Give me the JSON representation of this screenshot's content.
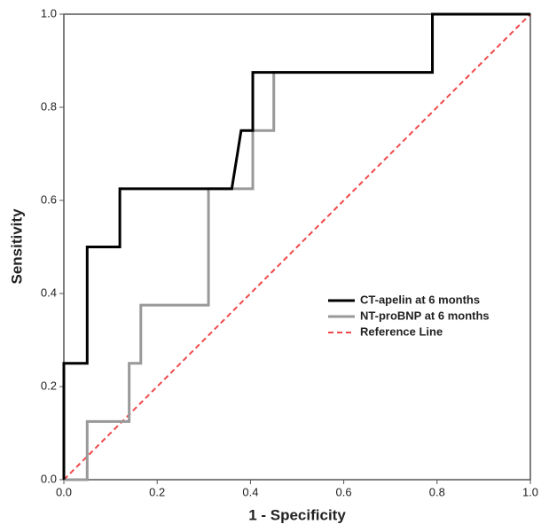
{
  "chart_data": {
    "type": "line",
    "xlabel": "1 - Specificity",
    "ylabel": "Sensitivity",
    "xlim": [
      0,
      1
    ],
    "ylim": [
      0,
      1
    ],
    "xticks": [
      {
        "value": 0,
        "label": "0.0"
      },
      0.2,
      0.4,
      0.6,
      0.8,
      {
        "value": 1,
        "label": "1.0"
      }
    ],
    "yticks": [
      {
        "value": 0,
        "label": "0.0"
      },
      0.2,
      0.4,
      0.6,
      0.8,
      {
        "value": 1,
        "label": "1.0"
      }
    ],
    "legend": "center-right",
    "series": [
      {
        "name": "CT-apelin at 6 months",
        "color": "#000000",
        "dash": false,
        "x": [
          0,
          0,
          0.05,
          0.05,
          0.12,
          0.12,
          0.36,
          0.38,
          0.405,
          0.405,
          0.79,
          0.79,
          1
        ],
        "values": [
          0,
          0.25,
          0.25,
          0.5,
          0.5,
          0.625,
          0.625,
          0.75,
          0.75,
          0.875,
          0.875,
          1,
          1
        ]
      },
      {
        "name": "NT-proBNP at 6 months",
        "color": "#999999",
        "dash": false,
        "x": [
          0,
          0.05,
          0.05,
          0.14,
          0.14,
          0.165,
          0.165,
          0.31,
          0.31,
          0.405,
          0.405,
          0.45,
          0.45,
          0.79,
          0.79,
          1
        ],
        "values": [
          0,
          0,
          0.125,
          0.125,
          0.25,
          0.25,
          0.375,
          0.375,
          0.625,
          0.625,
          0.75,
          0.75,
          0.875,
          0.875,
          1,
          1
        ]
      },
      {
        "name": "Reference Line",
        "color": "#f0484a",
        "dash": true,
        "x": [
          0,
          1
        ],
        "values": [
          0,
          1
        ]
      }
    ]
  }
}
